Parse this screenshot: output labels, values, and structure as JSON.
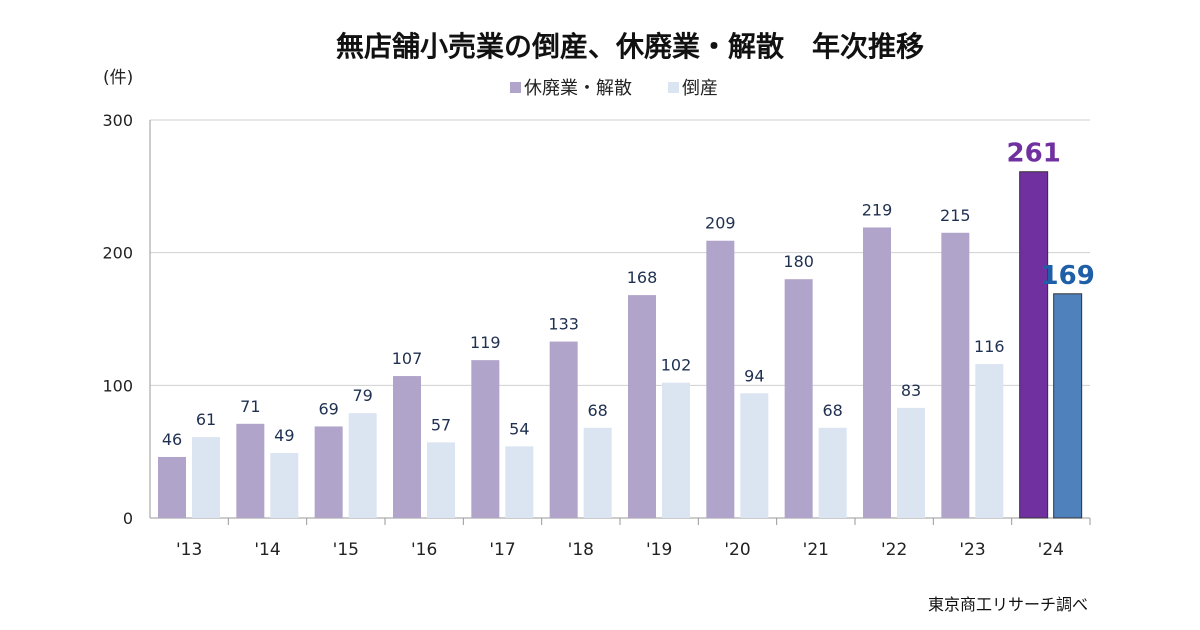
{
  "chart_data": {
    "type": "bar",
    "title": "無店舗小売業の倒産、休廃業・解散　年次推移",
    "ylabel": "(件)",
    "xlabel": "",
    "ylim": [
      0,
      300
    ],
    "yticks": [
      0,
      100,
      200,
      300
    ],
    "grid": true,
    "legend_position": "top-center",
    "categories": [
      "'13",
      "'14",
      "'15",
      "'16",
      "'17",
      "'18",
      "'19",
      "'20",
      "'21",
      "'22",
      "'23",
      "'24"
    ],
    "series": [
      {
        "name": "休廃業・解散",
        "color": "#b1a4ca",
        "highlight_color": "#7030a0",
        "label_highlight_color": "#7030a0",
        "values": [
          46,
          71,
          69,
          107,
          119,
          133,
          168,
          209,
          180,
          219,
          215,
          261
        ]
      },
      {
        "name": "倒産",
        "color": "#dbe4f1",
        "highlight_color": "#4f81bd",
        "label_highlight_color": "#1f5fa8",
        "values": [
          61,
          49,
          79,
          57,
          54,
          68,
          102,
          94,
          68,
          83,
          116,
          169
        ]
      }
    ],
    "label_color": "#1f3050",
    "source": "東京商工リサーチ調べ"
  }
}
